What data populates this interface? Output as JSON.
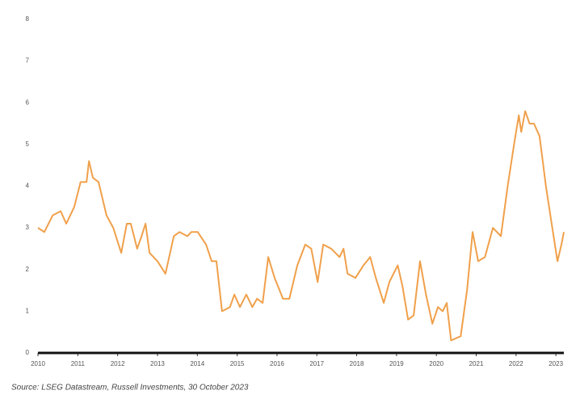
{
  "chart_data": {
    "type": "line",
    "source": "Source: LSEG Datastream, Russell Investments, 30 October 2023",
    "x": [
      2010.0,
      2010.16,
      2010.37,
      2010.57,
      2010.71,
      2010.91,
      2011.07,
      2011.22,
      2011.28,
      2011.38,
      2011.52,
      2011.72,
      2011.89,
      2012.09,
      2012.23,
      2012.33,
      2012.49,
      2012.6,
      2012.7,
      2012.8,
      2013.0,
      2013.2,
      2013.41,
      2013.55,
      2013.75,
      2013.85,
      2014.01,
      2014.22,
      2014.36,
      2014.48,
      2014.62,
      2014.82,
      2014.93,
      2015.07,
      2015.23,
      2015.38,
      2015.5,
      2015.64,
      2015.78,
      2015.94,
      2016.15,
      2016.31,
      2016.51,
      2016.71,
      2016.86,
      2017.02,
      2017.16,
      2017.36,
      2017.57,
      2017.67,
      2017.77,
      2017.97,
      2018.17,
      2018.34,
      2018.48,
      2018.68,
      2018.82,
      2019.03,
      2019.15,
      2019.29,
      2019.43,
      2019.59,
      2019.74,
      2019.9,
      2020.04,
      2020.16,
      2020.26,
      2020.37,
      2020.61,
      2020.77,
      2020.91,
      2021.05,
      2021.22,
      2021.42,
      2021.62,
      2021.79,
      2021.95,
      2022.07,
      2022.13,
      2022.23,
      2022.34,
      2022.45,
      2022.59,
      2022.75,
      2022.91,
      2023.04,
      2023.14,
      2023.2
    ],
    "series": [
      {
        "color": "#f0a04b",
        "values": [
          3.0,
          2.9,
          3.3,
          3.4,
          3.1,
          3.5,
          4.1,
          4.1,
          4.6,
          4.2,
          4.1,
          3.3,
          3.0,
          2.4,
          3.1,
          3.1,
          2.5,
          2.8,
          3.1,
          2.4,
          2.2,
          1.9,
          2.8,
          2.9,
          2.8,
          2.9,
          2.9,
          2.6,
          2.2,
          2.2,
          1.0,
          1.1,
          1.4,
          1.1,
          1.4,
          1.1,
          1.3,
          1.2,
          2.3,
          1.8,
          1.3,
          1.3,
          2.1,
          2.6,
          2.5,
          1.7,
          2.6,
          2.5,
          2.3,
          2.5,
          1.9,
          1.8,
          2.1,
          2.3,
          1.8,
          1.2,
          1.7,
          2.1,
          1.6,
          0.8,
          0.9,
          2.2,
          1.4,
          0.7,
          1.1,
          1.0,
          1.2,
          0.3,
          0.4,
          1.5,
          2.9,
          2.2,
          2.3,
          3.0,
          2.8,
          4.0,
          5.0,
          5.7,
          5.3,
          5.8,
          5.5,
          5.5,
          5.2,
          4.0,
          3.0,
          2.2,
          2.6,
          2.9
        ]
      }
    ],
    "xlim": [
      2010,
      2023.2
    ],
    "xticks": [
      2010,
      2011,
      2012,
      2013,
      2014,
      2015,
      2016,
      2017,
      2018,
      2019,
      2020,
      2021,
      2022,
      2023
    ],
    "ylim": [
      0,
      8
    ],
    "yticks": [
      0,
      1,
      2,
      3,
      4,
      5,
      6,
      7,
      8
    ]
  }
}
